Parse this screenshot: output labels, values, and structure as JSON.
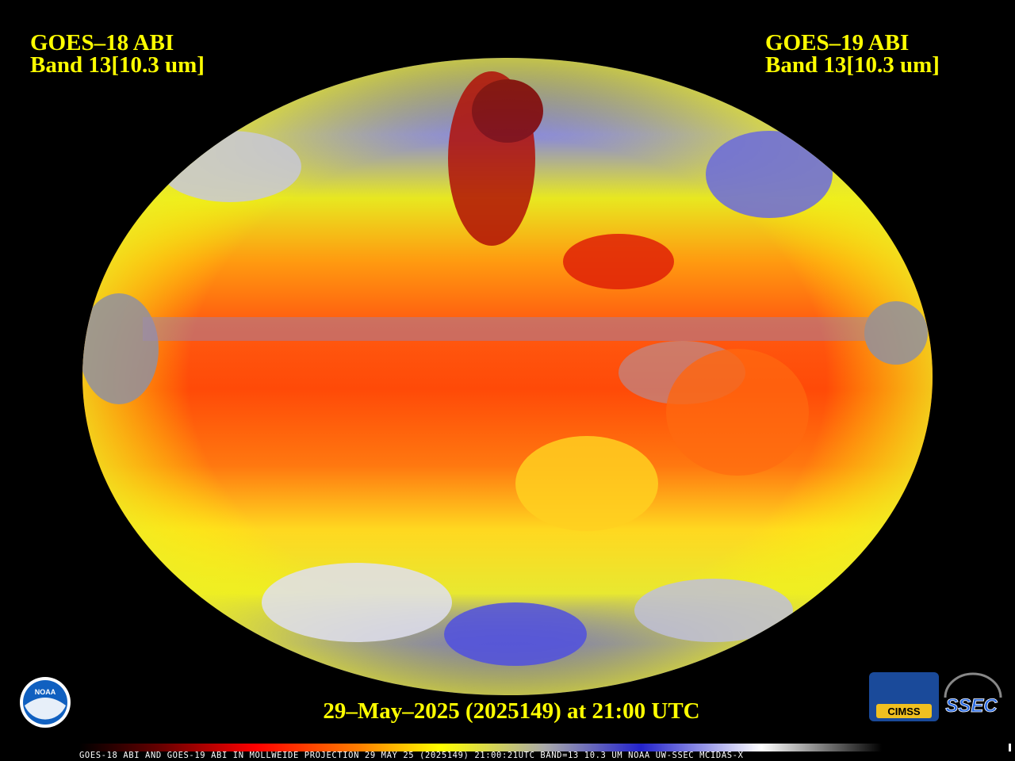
{
  "header": {
    "left": {
      "line1": "GOES–18 ABI",
      "line2": "Band 13[10.3 um]"
    },
    "right": {
      "line1": "GOES–19 ABI",
      "line2": "Band 13[10.3 um]"
    }
  },
  "timestamp": "29–May–2025 (2025149) at 21:00 UTC",
  "footer": "GOES-18 ABI AND GOES-19 ABI IN MOLLWEIDE PROJECTION 29 MAY 25 (2025149) 21:00:21UTC BAND=13 10.3 UM NOAA UW-SSEC MCIDAS-X",
  "logos": {
    "noaa": "NOAA",
    "cimss": "CIMSS",
    "ssec": "SSEC"
  }
}
